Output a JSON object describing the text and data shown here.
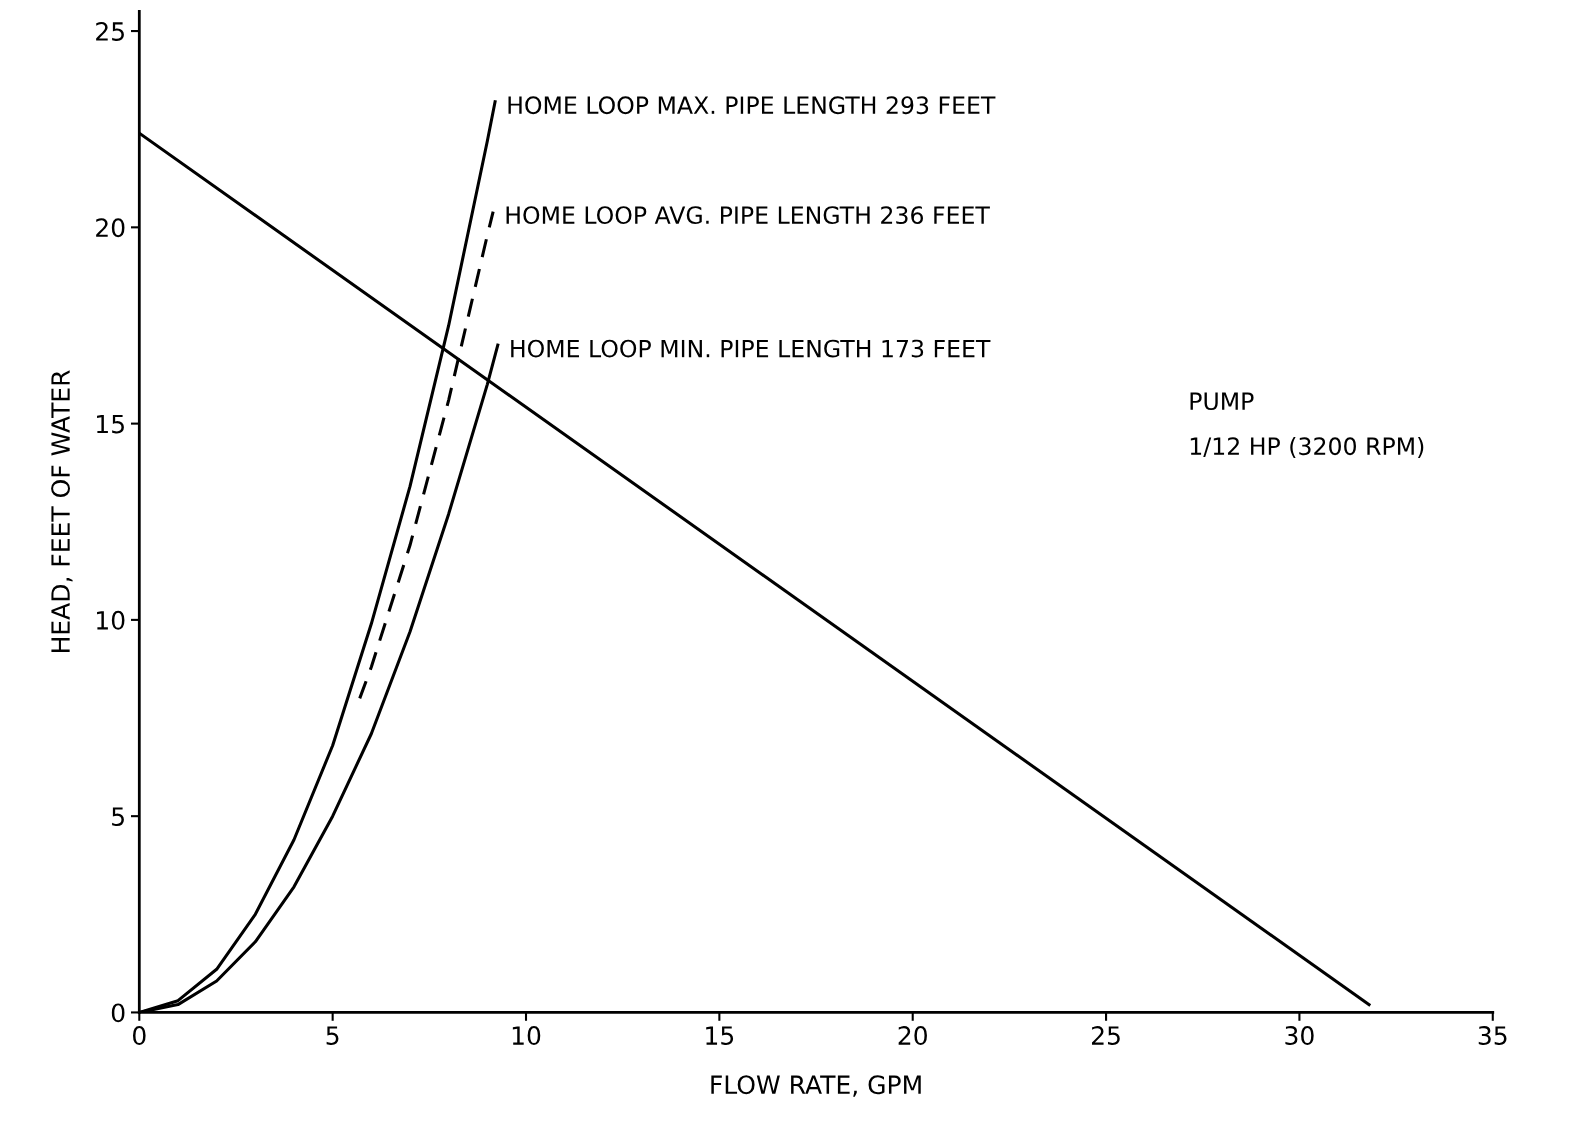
{
  "chart_data": {
    "type": "line",
    "xlabel": "FLOW RATE, GPM",
    "ylabel": "HEAD, FEET OF WATER",
    "xlim": [
      0,
      35
    ],
    "ylim": [
      0,
      25.5
    ],
    "xticks": [
      0,
      5,
      10,
      15,
      20,
      25,
      30,
      35
    ],
    "yticks": [
      0,
      5,
      10,
      15,
      20,
      25
    ],
    "grid": false,
    "legend": false,
    "marker": "none",
    "series": [
      {
        "x": [
          0,
          31.8
        ],
        "values": [
          22.4,
          0.2
        ],
        "color": "#000000",
        "line_style": "solid"
      },
      {
        "name": "HOME LOOP MAX. PIPE LENGTH 293 FEET",
        "x": [
          0,
          1,
          2,
          3,
          4,
          5,
          6,
          7,
          8,
          9,
          9.2
        ],
        "values": [
          0,
          0.3,
          1.1,
          2.5,
          4.4,
          6.8,
          9.9,
          13.4,
          17.5,
          22.2,
          23.2
        ],
        "color": "#000000",
        "line_style": "solid"
      },
      {
        "name": "HOME LOOP AVG. PIPE LENGTH 236 FEET",
        "x": [
          5.7,
          6,
          7,
          8,
          9,
          9.15
        ],
        "values": [
          8.0,
          8.8,
          11.9,
          15.6,
          19.8,
          20.4
        ],
        "color": "#000000",
        "line_style": "dashed"
      },
      {
        "name": "HOME LOOP MIN. PIPE LENGTH 173 FEET",
        "x": [
          0,
          1,
          2,
          3,
          4,
          5,
          6,
          7,
          8,
          9,
          9.27
        ],
        "values": [
          0,
          0.2,
          0.8,
          1.8,
          3.2,
          5.0,
          7.1,
          9.7,
          12.7,
          16.0,
          17.0
        ],
        "color": "#000000",
        "line_style": "solid"
      }
    ],
    "annotations": [
      "PUMP",
      "1/12 HP (3200 RPM)"
    ]
  }
}
